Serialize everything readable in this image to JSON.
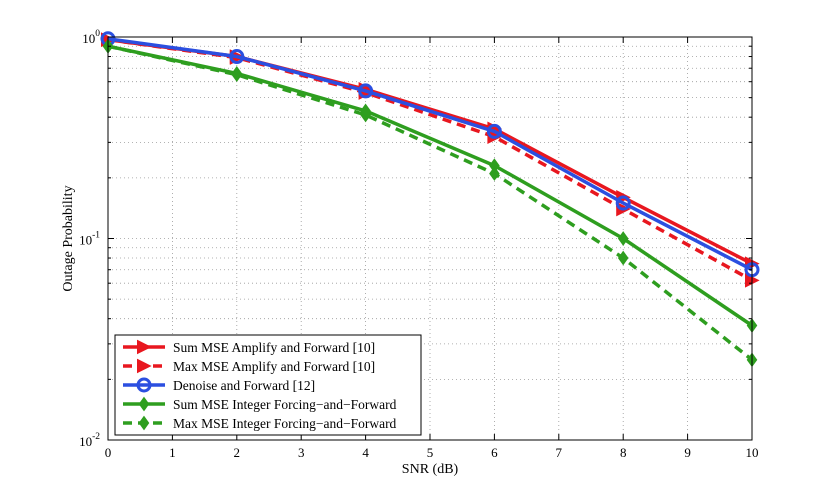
{
  "chart_data": {
    "type": "line",
    "title": "",
    "xlabel": "SNR (dB)",
    "ylabel": "Outage Probability",
    "xlim": [
      0,
      10
    ],
    "ylim": [
      0.01,
      1
    ],
    "yscale": "log",
    "grid": true,
    "xticks": [
      0,
      1,
      2,
      3,
      4,
      5,
      6,
      7,
      8,
      9,
      10
    ],
    "xtick_labels": [
      "0",
      "1",
      "2",
      "3",
      "4",
      "5",
      "6",
      "7",
      "8",
      "9",
      "10"
    ],
    "yticks": [
      {
        "value": 1,
        "base": "10",
        "exp": "0"
      },
      {
        "value": 0.1,
        "base": "10",
        "exp": "-1"
      },
      {
        "value": 0.01,
        "base": "10",
        "exp": "-2"
      }
    ],
    "legend_position": "bottom-left",
    "series": [
      {
        "name": "Sum MSE Amplify and Forward [10]",
        "color": "#e8171f",
        "dash": "solid",
        "marker": "triangle-right",
        "x": [
          0,
          2,
          4,
          6,
          8,
          10
        ],
        "y": [
          0.97,
          0.8,
          0.55,
          0.35,
          0.16,
          0.075
        ]
      },
      {
        "name": "Max MSE Amplify and Forward [10]",
        "color": "#e8171f",
        "dash": "dashed",
        "marker": "triangle-right",
        "x": [
          0,
          2,
          4,
          6,
          8,
          10
        ],
        "y": [
          0.97,
          0.79,
          0.53,
          0.32,
          0.14,
          0.062
        ]
      },
      {
        "name": "Denoise and Forward [12]",
        "color": "#2b4fe0",
        "dash": "solid",
        "marker": "circle",
        "x": [
          0,
          2,
          4,
          6,
          8,
          10
        ],
        "y": [
          0.98,
          0.8,
          0.54,
          0.34,
          0.15,
          0.07
        ]
      },
      {
        "name": "Sum MSE Integer Forcing−and−Forward",
        "color": "#2e9e1f",
        "dash": "solid",
        "marker": "diamond",
        "x": [
          0,
          2,
          4,
          6,
          8,
          10
        ],
        "y": [
          0.9,
          0.66,
          0.43,
          0.23,
          0.1,
          0.037
        ]
      },
      {
        "name": "Max MSE Integer Forcing−and−Forward",
        "color": "#2e9e1f",
        "dash": "dashed",
        "marker": "diamond",
        "x": [
          0,
          2,
          4,
          6,
          8,
          10
        ],
        "y": [
          0.9,
          0.65,
          0.41,
          0.21,
          0.08,
          0.025
        ]
      }
    ]
  }
}
